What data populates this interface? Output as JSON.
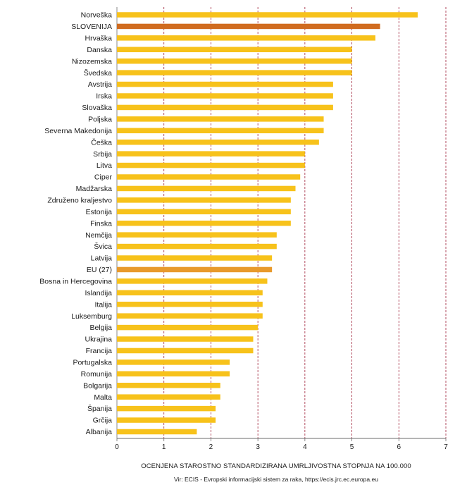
{
  "chart_data": {
    "type": "bar",
    "orientation": "horizontal",
    "categories": [
      "Norveška",
      "SLOVENIJA",
      "Hrvaška",
      "Danska",
      "Nizozemska",
      "Švedska",
      "Avstrija",
      "Irska",
      "Slovaška",
      "Poljska",
      "Severna Makedonija",
      "Češka",
      "Srbija",
      "Litva",
      "Ciper",
      "Madžarska",
      "Združeno kraljestvo",
      "Estonija",
      "Finska",
      "Nemčija",
      "Švica",
      "Latvija",
      "EU (27)",
      "Bosna in Hercegovina",
      "Islandija",
      "Italija",
      "Luksemburg",
      "Belgija",
      "Ukrajina",
      "Francija",
      "Portugalska",
      "Romunija",
      "Bolgarija",
      "Malta",
      "Španija",
      "Grčija",
      "Albanija"
    ],
    "values": [
      6.4,
      5.6,
      5.5,
      5.0,
      5.0,
      5.0,
      4.6,
      4.6,
      4.6,
      4.4,
      4.4,
      4.3,
      4.0,
      4.0,
      3.9,
      3.8,
      3.7,
      3.7,
      3.7,
      3.4,
      3.4,
      3.3,
      3.3,
      3.2,
      3.1,
      3.1,
      3.1,
      3.0,
      2.9,
      2.9,
      2.4,
      2.4,
      2.2,
      2.2,
      2.1,
      2.1,
      1.7
    ],
    "highlight": {
      "SLOVENIJA": "#d06b1f",
      "EU (27)": "#e89a2c"
    },
    "bar_color": "#f7c21b",
    "grid_color": "#a0223a",
    "grid": true,
    "xlim": [
      0,
      7
    ],
    "xticks": [
      "0",
      "1",
      "2",
      "3",
      "4",
      "5",
      "6",
      "7"
    ],
    "xlabel": "OCENJENA STAROSTNO STANDARDIZIRANA UMRLJIVOSTNA STOPNJA NA 100.000",
    "ylabel": "",
    "title": ""
  },
  "source_note": "Vir: ECIS - Evropski informacijski sistem za raka, https://ecis.jrc.ec.europa.eu"
}
